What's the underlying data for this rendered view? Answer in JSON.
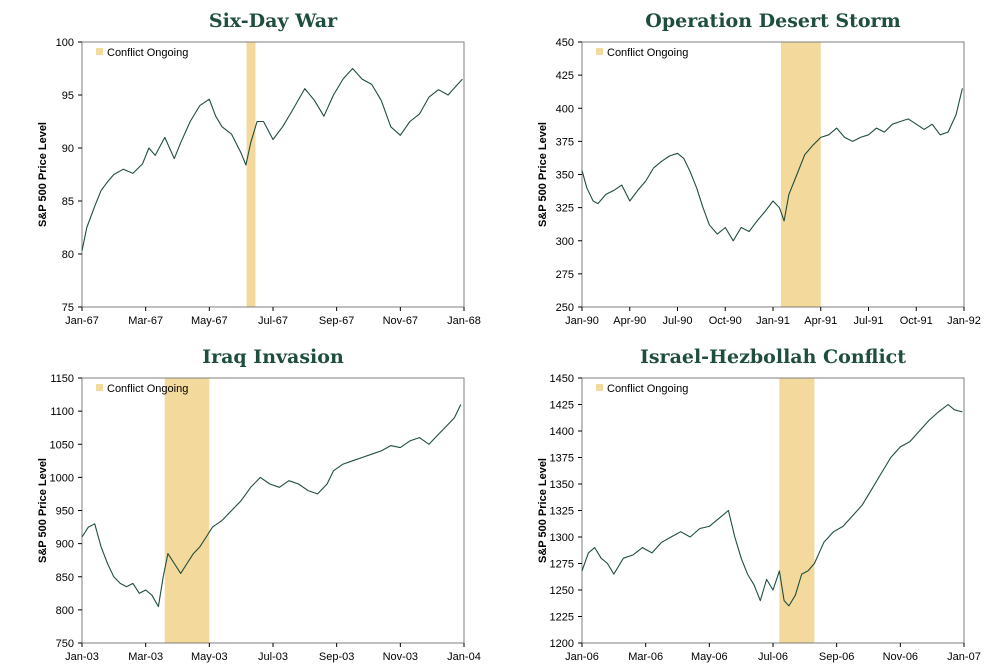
{
  "colors": {
    "line": "#1f4e3d",
    "band": "#f3d99b",
    "title": "#1f4e3d",
    "axis": "#000000"
  },
  "chart_data": [
    {
      "type": "line",
      "title": "Six-Day War",
      "ylabel": "S&P 500 Price Level",
      "legend": "Conflict Ongoing",
      "ylim": [
        75,
        100
      ],
      "yticks": [
        "75",
        "80",
        "85",
        "90",
        "95",
        "100"
      ],
      "xticks": [
        "Jan-67",
        "Mar-67",
        "May-67",
        "Jul-67",
        "Sep-67",
        "Nov-67",
        "Jan-68"
      ],
      "xrange": [
        0,
        12
      ],
      "band": [
        5.17,
        5.45
      ],
      "grid": false,
      "series": [
        {
          "x": [
            0,
            0.15,
            0.4,
            0.6,
            0.8,
            1.0,
            1.3,
            1.6,
            1.9,
            2.1,
            2.3,
            2.6,
            2.9,
            3.1,
            3.4,
            3.7,
            4.0,
            4.2,
            4.4,
            4.7,
            5.0,
            5.15,
            5.3,
            5.5,
            5.7,
            6.0,
            6.3,
            6.6,
            7.0,
            7.3,
            7.6,
            7.9,
            8.2,
            8.5,
            8.8,
            9.1,
            9.4,
            9.7,
            10.0,
            10.3,
            10.6,
            10.9,
            11.2,
            11.5,
            11.8,
            11.95
          ],
          "values": [
            80.3,
            82.5,
            84.5,
            86.0,
            86.8,
            87.5,
            88.0,
            87.6,
            88.5,
            90.0,
            89.3,
            91.0,
            89.0,
            90.5,
            92.5,
            94.0,
            94.6,
            93.0,
            92.0,
            91.3,
            89.5,
            88.4,
            90.5,
            92.5,
            92.5,
            90.8,
            92.0,
            93.5,
            95.6,
            94.5,
            93.0,
            95.0,
            96.5,
            97.5,
            96.5,
            96.0,
            94.5,
            92.0,
            91.2,
            92.5,
            93.2,
            94.8,
            95.5,
            95.0,
            96.0,
            96.5
          ]
        }
      ]
    },
    {
      "type": "line",
      "title": "Operation Desert Storm",
      "ylabel": "S&P 500 Price Level",
      "legend": "Conflict Ongoing",
      "ylim": [
        250,
        450
      ],
      "yticks": [
        "250",
        "275",
        "300",
        "325",
        "350",
        "375",
        "400",
        "425",
        "450"
      ],
      "xticks": [
        "Jan-90",
        "Apr-90",
        "Jul-90",
        "Oct-90",
        "Jan-91",
        "Apr-91",
        "Jul-91",
        "Oct-91",
        "Jan-92"
      ],
      "xrange": [
        0,
        24
      ],
      "band": [
        12.5,
        15.0
      ],
      "grid": false,
      "series": [
        {
          "x": [
            0,
            0.3,
            0.7,
            1.0,
            1.5,
            2.0,
            2.5,
            3.0,
            3.5,
            4.0,
            4.5,
            5.0,
            5.5,
            6.0,
            6.4,
            6.8,
            7.2,
            7.6,
            8.0,
            8.5,
            9.0,
            9.5,
            10.0,
            10.5,
            11.0,
            11.5,
            12.0,
            12.4,
            12.7,
            13.0,
            13.5,
            14.0,
            14.5,
            15.0,
            15.5,
            16.0,
            16.5,
            17.0,
            17.5,
            18.0,
            18.5,
            19.0,
            19.5,
            20.0,
            20.5,
            21.0,
            21.5,
            22.0,
            22.5,
            23.0,
            23.5,
            23.9
          ],
          "values": [
            353,
            340,
            330,
            328,
            335,
            338,
            342,
            330,
            338,
            345,
            355,
            360,
            364,
            366,
            362,
            352,
            340,
            325,
            312,
            305,
            310,
            300,
            310,
            307,
            315,
            322,
            330,
            325,
            315,
            335,
            350,
            365,
            372,
            378,
            380,
            385,
            378,
            375,
            378,
            380,
            385,
            382,
            388,
            390,
            392,
            388,
            384,
            388,
            380,
            382,
            395,
            415
          ]
        }
      ]
    },
    {
      "type": "line",
      "title": "Iraq Invasion",
      "ylabel": "S&P 500 Price Level",
      "legend": "Conflict Ongoing",
      "ylim": [
        750,
        1150
      ],
      "yticks": [
        "750",
        "800",
        "850",
        "900",
        "950",
        "1000",
        "1050",
        "1100",
        "1150"
      ],
      "xticks": [
        "Jan-03",
        "Mar-03",
        "May-03",
        "Jul-03",
        "Sep-03",
        "Nov-03",
        "Jan-04"
      ],
      "xrange": [
        0,
        12
      ],
      "band": [
        2.6,
        4.0
      ],
      "grid": false,
      "series": [
        {
          "x": [
            0,
            0.2,
            0.4,
            0.6,
            0.8,
            1.0,
            1.2,
            1.4,
            1.6,
            1.8,
            2.0,
            2.2,
            2.4,
            2.55,
            2.7,
            2.9,
            3.1,
            3.3,
            3.5,
            3.7,
            3.9,
            4.1,
            4.4,
            4.7,
            5.0,
            5.3,
            5.6,
            5.9,
            6.2,
            6.5,
            6.8,
            7.1,
            7.4,
            7.7,
            7.9,
            8.2,
            8.5,
            8.8,
            9.1,
            9.4,
            9.7,
            10.0,
            10.3,
            10.6,
            10.9,
            11.2,
            11.5,
            11.7,
            11.9
          ],
          "values": [
            910,
            925,
            930,
            895,
            870,
            850,
            840,
            835,
            840,
            825,
            830,
            822,
            805,
            850,
            885,
            870,
            855,
            870,
            885,
            895,
            910,
            925,
            935,
            950,
            965,
            985,
            1000,
            990,
            985,
            995,
            990,
            980,
            975,
            990,
            1010,
            1020,
            1025,
            1030,
            1035,
            1040,
            1048,
            1045,
            1055,
            1060,
            1050,
            1065,
            1080,
            1090,
            1110
          ]
        }
      ]
    },
    {
      "type": "line",
      "title": "Israel-Hezbollah Conflict",
      "ylabel": "S&P 500 Price Level",
      "legend": "Conflict Ongoing",
      "ylim": [
        1200,
        1450
      ],
      "yticks": [
        "1200",
        "1225",
        "1250",
        "1275",
        "1300",
        "1325",
        "1350",
        "1375",
        "1400",
        "1425",
        "1450"
      ],
      "xticks": [
        "Jan-06",
        "Mar-06",
        "May-06",
        "Jul-06",
        "Sep-06",
        "Nov-06",
        "Jan-07"
      ],
      "xrange": [
        0,
        12
      ],
      "band": [
        6.2,
        7.3
      ],
      "grid": false,
      "series": [
        {
          "x": [
            0,
            0.2,
            0.4,
            0.6,
            0.8,
            1.0,
            1.3,
            1.6,
            1.9,
            2.2,
            2.5,
            2.8,
            3.1,
            3.4,
            3.7,
            4.0,
            4.2,
            4.4,
            4.6,
            4.8,
            5.0,
            5.2,
            5.4,
            5.6,
            5.8,
            6.0,
            6.2,
            6.35,
            6.5,
            6.7,
            6.9,
            7.1,
            7.3,
            7.6,
            7.9,
            8.2,
            8.5,
            8.8,
            9.1,
            9.4,
            9.7,
            10.0,
            10.3,
            10.6,
            10.9,
            11.2,
            11.5,
            11.7,
            11.95
          ],
          "values": [
            1268,
            1285,
            1290,
            1280,
            1275,
            1265,
            1280,
            1283,
            1290,
            1285,
            1295,
            1300,
            1305,
            1300,
            1308,
            1310,
            1315,
            1320,
            1325,
            1300,
            1280,
            1265,
            1255,
            1240,
            1260,
            1250,
            1268,
            1240,
            1235,
            1245,
            1265,
            1268,
            1275,
            1295,
            1305,
            1310,
            1320,
            1330,
            1345,
            1360,
            1375,
            1385,
            1390,
            1400,
            1410,
            1418,
            1425,
            1420,
            1418
          ]
        }
      ]
    }
  ]
}
